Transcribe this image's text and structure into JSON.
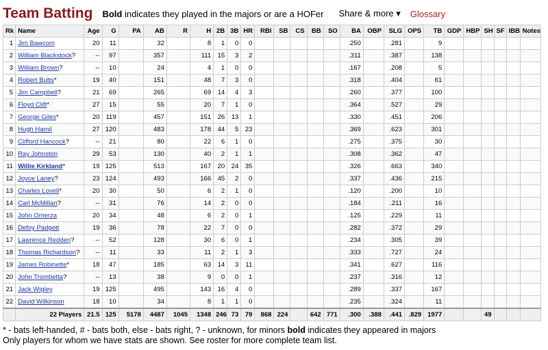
{
  "header": {
    "title": "Team Batting",
    "note_bold": "Bold",
    "note_rest": " indicates they played in the majors or are a HOFer",
    "share_label": "Share & more ▾",
    "glossary_label": "Glossary"
  },
  "columns": [
    "Rk",
    "Name",
    "Age",
    "G",
    "PA",
    "AB",
    "R",
    "H",
    "2B",
    "3B",
    "HR",
    "RBI",
    "SB",
    "CS",
    "BB",
    "SO",
    "BA",
    "OBP",
    "SLG",
    "OPS",
    "TB",
    "GDP",
    "HBP",
    "SH",
    "SF",
    "IBB",
    "Notes"
  ],
  "rows": [
    {
      "rk": "1",
      "name": "Jim Bawcom",
      "mark": "",
      "bold": false,
      "age": "20",
      "g": "11",
      "pa": "",
      "ab": "32",
      "r": "",
      "h": "8",
      "d": "1",
      "t": "0",
      "hr": "0",
      "rbi": "",
      "sb": "",
      "cs": "",
      "bb": "",
      "so": "",
      "ba": ".250",
      "obp": "",
      "slg": ".281",
      "ops": "",
      "tb": "9",
      "gdp": "",
      "hbp": "",
      "sh": "",
      "sf": "",
      "ibb": "",
      "notes": ""
    },
    {
      "rk": "2",
      "name": "William Blackstock",
      "mark": "?",
      "bold": false,
      "age": "--",
      "g": "97",
      "pa": "",
      "ab": "357",
      "r": "",
      "h": "111",
      "d": "15",
      "t": "3",
      "hr": "2",
      "rbi": "",
      "sb": "",
      "cs": "",
      "bb": "",
      "so": "",
      "ba": ".311",
      "obp": "",
      "slg": ".387",
      "ops": "",
      "tb": "138",
      "gdp": "",
      "hbp": "",
      "sh": "",
      "sf": "",
      "ibb": "",
      "notes": ""
    },
    {
      "rk": "3",
      "name": "William Brown",
      "mark": "?",
      "bold": false,
      "age": "--",
      "g": "10",
      "pa": "",
      "ab": "24",
      "r": "",
      "h": "4",
      "d": "1",
      "t": "0",
      "hr": "0",
      "rbi": "",
      "sb": "",
      "cs": "",
      "bb": "",
      "so": "",
      "ba": ".167",
      "obp": "",
      "slg": ".208",
      "ops": "",
      "tb": "5",
      "gdp": "",
      "hbp": "",
      "sh": "",
      "sf": "",
      "ibb": "",
      "notes": ""
    },
    {
      "rk": "4",
      "name": "Robert Butts",
      "mark": "*",
      "bold": false,
      "age": "19",
      "g": "40",
      "pa": "",
      "ab": "151",
      "r": "",
      "h": "48",
      "d": "7",
      "t": "3",
      "hr": "0",
      "rbi": "",
      "sb": "",
      "cs": "",
      "bb": "",
      "so": "",
      "ba": ".318",
      "obp": "",
      "slg": ".404",
      "ops": "",
      "tb": "61",
      "gdp": "",
      "hbp": "",
      "sh": "",
      "sf": "",
      "ibb": "",
      "notes": ""
    },
    {
      "rk": "5",
      "name": "Jim Campbell",
      "mark": "?",
      "bold": false,
      "age": "21",
      "g": "69",
      "pa": "",
      "ab": "265",
      "r": "",
      "h": "69",
      "d": "14",
      "t": "4",
      "hr": "3",
      "rbi": "",
      "sb": "",
      "cs": "",
      "bb": "",
      "so": "",
      "ba": ".260",
      "obp": "",
      "slg": ".377",
      "ops": "",
      "tb": "100",
      "gdp": "",
      "hbp": "",
      "sh": "",
      "sf": "",
      "ibb": "",
      "notes": ""
    },
    {
      "rk": "6",
      "name": "Floyd Clift",
      "mark": "*",
      "bold": false,
      "age": "27",
      "g": "15",
      "pa": "",
      "ab": "55",
      "r": "",
      "h": "20",
      "d": "7",
      "t": "1",
      "hr": "0",
      "rbi": "",
      "sb": "",
      "cs": "",
      "bb": "",
      "so": "",
      "ba": ".364",
      "obp": "",
      "slg": ".527",
      "ops": "",
      "tb": "29",
      "gdp": "",
      "hbp": "",
      "sh": "",
      "sf": "",
      "ibb": "",
      "notes": ""
    },
    {
      "rk": "7",
      "name": "George Giles",
      "mark": "*",
      "bold": false,
      "age": "20",
      "g": "119",
      "pa": "",
      "ab": "457",
      "r": "",
      "h": "151",
      "d": "26",
      "t": "13",
      "hr": "1",
      "rbi": "",
      "sb": "",
      "cs": "",
      "bb": "",
      "so": "",
      "ba": ".330",
      "obp": "",
      "slg": ".451",
      "ops": "",
      "tb": "206",
      "gdp": "",
      "hbp": "",
      "sh": "",
      "sf": "",
      "ibb": "",
      "notes": ""
    },
    {
      "rk": "8",
      "name": "Hugh Hamil",
      "mark": "",
      "bold": false,
      "age": "27",
      "g": "120",
      "pa": "",
      "ab": "483",
      "r": "",
      "h": "178",
      "d": "44",
      "t": "5",
      "hr": "23",
      "rbi": "",
      "sb": "",
      "cs": "",
      "bb": "",
      "so": "",
      "ba": ".369",
      "obp": "",
      "slg": ".623",
      "ops": "",
      "tb": "301",
      "gdp": "",
      "hbp": "",
      "sh": "",
      "sf": "",
      "ibb": "",
      "notes": ""
    },
    {
      "rk": "9",
      "name": "Clifford Hancock",
      "mark": "?",
      "bold": false,
      "age": "--",
      "g": "21",
      "pa": "",
      "ab": "80",
      "r": "",
      "h": "22",
      "d": "6",
      "t": "1",
      "hr": "0",
      "rbi": "",
      "sb": "",
      "cs": "",
      "bb": "",
      "so": "",
      "ba": ".275",
      "obp": "",
      "slg": ".375",
      "ops": "",
      "tb": "30",
      "gdp": "",
      "hbp": "",
      "sh": "",
      "sf": "",
      "ibb": "",
      "notes": ""
    },
    {
      "rk": "10",
      "name": "Ray Johnston",
      "mark": "",
      "bold": false,
      "age": "29",
      "g": "53",
      "pa": "",
      "ab": "130",
      "r": "",
      "h": "40",
      "d": "2",
      "t": "1",
      "hr": "1",
      "rbi": "",
      "sb": "",
      "cs": "",
      "bb": "",
      "so": "",
      "ba": ".308",
      "obp": "",
      "slg": ".362",
      "ops": "",
      "tb": "47",
      "gdp": "",
      "hbp": "",
      "sh": "",
      "sf": "",
      "ibb": "",
      "notes": ""
    },
    {
      "rk": "11",
      "name": "Willie Kirkland",
      "mark": "*",
      "bold": true,
      "age": "19",
      "g": "125",
      "pa": "",
      "ab": "513",
      "r": "",
      "h": "167",
      "d": "20",
      "t": "24",
      "hr": "35",
      "rbi": "",
      "sb": "",
      "cs": "",
      "bb": "",
      "so": "",
      "ba": ".326",
      "obp": "",
      "slg": ".663",
      "ops": "",
      "tb": "340",
      "gdp": "",
      "hbp": "",
      "sh": "",
      "sf": "",
      "ibb": "",
      "notes": ""
    },
    {
      "rk": "12",
      "name": "Joyce Laney",
      "mark": "?",
      "bold": false,
      "age": "23",
      "g": "124",
      "pa": "",
      "ab": "493",
      "r": "",
      "h": "166",
      "d": "45",
      "t": "2",
      "hr": "0",
      "rbi": "",
      "sb": "",
      "cs": "",
      "bb": "",
      "so": "",
      "ba": ".337",
      "obp": "",
      "slg": ".436",
      "ops": "",
      "tb": "215",
      "gdp": "",
      "hbp": "",
      "sh": "",
      "sf": "",
      "ibb": "",
      "notes": ""
    },
    {
      "rk": "13",
      "name": "Charles Lovell",
      "mark": "*",
      "bold": false,
      "age": "20",
      "g": "30",
      "pa": "",
      "ab": "50",
      "r": "",
      "h": "6",
      "d": "2",
      "t": "1",
      "hr": "0",
      "rbi": "",
      "sb": "",
      "cs": "",
      "bb": "",
      "so": "",
      "ba": ".120",
      "obp": "",
      "slg": ".200",
      "ops": "",
      "tb": "10",
      "gdp": "",
      "hbp": "",
      "sh": "",
      "sf": "",
      "ibb": "",
      "notes": ""
    },
    {
      "rk": "14",
      "name": "Carl McMillan",
      "mark": "?",
      "bold": false,
      "age": "--",
      "g": "31",
      "pa": "",
      "ab": "76",
      "r": "",
      "h": "14",
      "d": "2",
      "t": "0",
      "hr": "0",
      "rbi": "",
      "sb": "",
      "cs": "",
      "bb": "",
      "so": "",
      "ba": ".184",
      "obp": "",
      "slg": ".211",
      "ops": "",
      "tb": "16",
      "gdp": "",
      "hbp": "",
      "sh": "",
      "sf": "",
      "ibb": "",
      "notes": ""
    },
    {
      "rk": "15",
      "name": "John Omerza",
      "mark": "",
      "bold": false,
      "age": "20",
      "g": "34",
      "pa": "",
      "ab": "48",
      "r": "",
      "h": "6",
      "d": "2",
      "t": "0",
      "hr": "1",
      "rbi": "",
      "sb": "",
      "cs": "",
      "bb": "",
      "so": "",
      "ba": ".125",
      "obp": "",
      "slg": ".229",
      "ops": "",
      "tb": "11",
      "gdp": "",
      "hbp": "",
      "sh": "",
      "sf": "",
      "ibb": "",
      "notes": ""
    },
    {
      "rk": "16",
      "name": "Defoy Padgett",
      "mark": "",
      "bold": false,
      "age": "19",
      "g": "36",
      "pa": "",
      "ab": "78",
      "r": "",
      "h": "22",
      "d": "7",
      "t": "0",
      "hr": "0",
      "rbi": "",
      "sb": "",
      "cs": "",
      "bb": "",
      "so": "",
      "ba": ".282",
      "obp": "",
      "slg": ".372",
      "ops": "",
      "tb": "29",
      "gdp": "",
      "hbp": "",
      "sh": "",
      "sf": "",
      "ibb": "",
      "notes": ""
    },
    {
      "rk": "17",
      "name": "Lawrence Redden",
      "mark": "?",
      "bold": false,
      "age": "--",
      "g": "52",
      "pa": "",
      "ab": "128",
      "r": "",
      "h": "30",
      "d": "6",
      "t": "0",
      "hr": "1",
      "rbi": "",
      "sb": "",
      "cs": "",
      "bb": "",
      "so": "",
      "ba": ".234",
      "obp": "",
      "slg": ".305",
      "ops": "",
      "tb": "39",
      "gdp": "",
      "hbp": "",
      "sh": "",
      "sf": "",
      "ibb": "",
      "notes": ""
    },
    {
      "rk": "18",
      "name": "Thomas Richardson",
      "mark": "?",
      "bold": false,
      "age": "--",
      "g": "11",
      "pa": "",
      "ab": "33",
      "r": "",
      "h": "11",
      "d": "2",
      "t": "1",
      "hr": "3",
      "rbi": "",
      "sb": "",
      "cs": "",
      "bb": "",
      "so": "",
      "ba": ".333",
      "obp": "",
      "slg": ".727",
      "ops": "",
      "tb": "24",
      "gdp": "",
      "hbp": "",
      "sh": "",
      "sf": "",
      "ibb": "",
      "notes": ""
    },
    {
      "rk": "19",
      "name": "James Robinette",
      "mark": "*",
      "bold": false,
      "age": "18",
      "g": "47",
      "pa": "",
      "ab": "185",
      "r": "",
      "h": "63",
      "d": "14",
      "t": "3",
      "hr": "11",
      "rbi": "",
      "sb": "",
      "cs": "",
      "bb": "",
      "so": "",
      "ba": ".341",
      "obp": "",
      "slg": ".627",
      "ops": "",
      "tb": "116",
      "gdp": "",
      "hbp": "",
      "sh": "",
      "sf": "",
      "ibb": "",
      "notes": ""
    },
    {
      "rk": "20",
      "name": "John Trombetta",
      "mark": "?",
      "bold": false,
      "age": "--",
      "g": "13",
      "pa": "",
      "ab": "38",
      "r": "",
      "h": "9",
      "d": "0",
      "t": "0",
      "hr": "1",
      "rbi": "",
      "sb": "",
      "cs": "",
      "bb": "",
      "so": "",
      "ba": ".237",
      "obp": "",
      "slg": ".316",
      "ops": "",
      "tb": "12",
      "gdp": "",
      "hbp": "",
      "sh": "",
      "sf": "",
      "ibb": "",
      "notes": ""
    },
    {
      "rk": "21",
      "name": "Jack Wigley",
      "mark": "",
      "bold": false,
      "age": "19",
      "g": "125",
      "pa": "",
      "ab": "495",
      "r": "",
      "h": "143",
      "d": "16",
      "t": "4",
      "hr": "0",
      "rbi": "",
      "sb": "",
      "cs": "",
      "bb": "",
      "so": "",
      "ba": ".289",
      "obp": "",
      "slg": ".337",
      "ops": "",
      "tb": "167",
      "gdp": "",
      "hbp": "",
      "sh": "",
      "sf": "",
      "ibb": "",
      "notes": ""
    },
    {
      "rk": "22",
      "name": "David Wilkinson",
      "mark": "",
      "bold": false,
      "age": "18",
      "g": "10",
      "pa": "",
      "ab": "34",
      "r": "",
      "h": "8",
      "d": "1",
      "t": "1",
      "hr": "0",
      "rbi": "",
      "sb": "",
      "cs": "",
      "bb": "",
      "so": "",
      "ba": ".235",
      "obp": "",
      "slg": ".324",
      "ops": "",
      "tb": "11",
      "gdp": "",
      "hbp": "",
      "sh": "",
      "sf": "",
      "ibb": "",
      "notes": ""
    }
  ],
  "totals": {
    "label": "22 Players",
    "age": "21.5",
    "g": "125",
    "pa": "5178",
    "ab": "4487",
    "r": "1045",
    "h": "1348",
    "d": "246",
    "t": "73",
    "hr": "79",
    "rbi": "868",
    "sb": "224",
    "cs": "",
    "bb": "642",
    "so": "771",
    "ba": ".300",
    "obp": ".388",
    "slg": ".441",
    "ops": ".829",
    "tb": "1977",
    "gdp": "",
    "hbp": "",
    "sh": "49",
    "sf": "",
    "ibb": "",
    "notes": ""
  },
  "footnote": {
    "line1_pre": "* - bats left-handed, # - bats both, else - bats right, ? - unknown, for minors ",
    "line1_bold": "bold",
    "line1_post": " indicates they appeared in majors",
    "line2": "Only players for whom we have stats are shown. See roster for more complete team list."
  }
}
